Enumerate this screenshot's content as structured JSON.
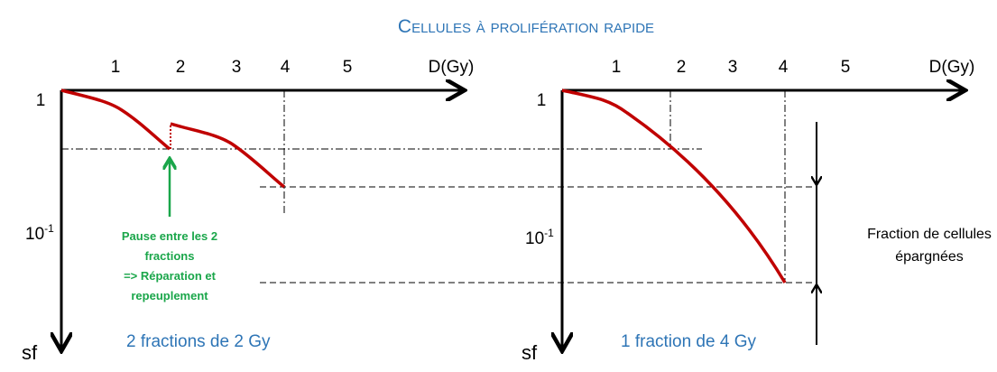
{
  "title": "Cellules à prolifération rapide",
  "panels": [
    {
      "x_ticks": [
        "1",
        "2",
        "3",
        "4",
        "5"
      ],
      "x_label": "D(Gy)",
      "y_top": "1",
      "y_mid": {
        "base": "10",
        "exponent": "-1"
      },
      "y_label": "sf",
      "caption": "2 fractions de 2 Gy",
      "annotation": [
        "Pause entre les 2",
        "fractions",
        "=> Réparation et",
        "repeuplement"
      ]
    },
    {
      "x_ticks": [
        "1",
        "2",
        "3",
        "4",
        "5"
      ],
      "x_label": "D(Gy)",
      "y_top": "1",
      "y_mid": {
        "base": "10",
        "exponent": "-1"
      },
      "y_label": "sf",
      "caption": "1 fraction de 4 Gy",
      "annotation": [
        "Fraction de cellules",
        "épargnées"
      ]
    }
  ]
}
